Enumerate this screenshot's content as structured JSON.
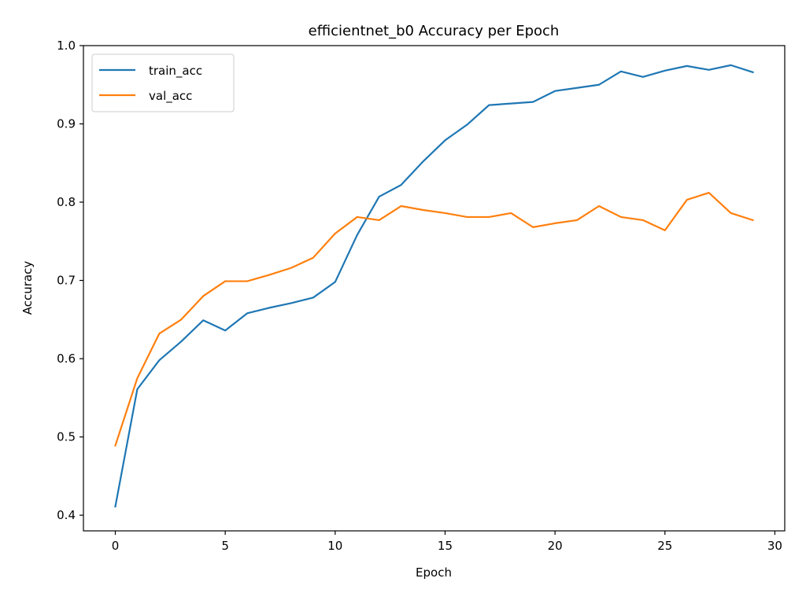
{
  "chart_data": {
    "type": "line",
    "title": "efficientnet_b0 Accuracy per Epoch",
    "xlabel": "Epoch",
    "ylabel": "Accuracy",
    "xlim": [
      -1.45,
      30.45
    ],
    "ylim": [
      0.38,
      1.0
    ],
    "xticks": [
      0,
      5,
      10,
      15,
      20,
      25,
      30
    ],
    "xtick_labels": [
      "0",
      "5",
      "10",
      "15",
      "20",
      "25",
      "30"
    ],
    "yticks": [
      0.4,
      0.5,
      0.6,
      0.7,
      0.8,
      0.9,
      1.0
    ],
    "ytick_labels": [
      "0.4",
      "0.5",
      "0.6",
      "0.7",
      "0.8",
      "0.9",
      "1.0"
    ],
    "grid": false,
    "legend_position": "top-left",
    "x": [
      0,
      1,
      2,
      3,
      4,
      5,
      6,
      7,
      8,
      9,
      10,
      11,
      12,
      13,
      14,
      15,
      16,
      17,
      18,
      19,
      20,
      21,
      22,
      23,
      24,
      25,
      26,
      27,
      28,
      29
    ],
    "series": [
      {
        "name": "train_acc",
        "color": "#1f77b4",
        "values": [
          0.411,
          0.561,
          0.598,
          0.622,
          0.649,
          0.636,
          0.658,
          0.665,
          0.671,
          0.678,
          0.698,
          0.758,
          0.807,
          0.822,
          0.852,
          0.879,
          0.899,
          0.924,
          0.926,
          0.928,
          0.942,
          0.946,
          0.95,
          0.967,
          0.96,
          0.968,
          0.974,
          0.969,
          0.975,
          0.966
        ]
      },
      {
        "name": "val_acc",
        "color": "#ff7f0e",
        "values": [
          0.489,
          0.575,
          0.632,
          0.65,
          0.68,
          0.699,
          0.699,
          0.707,
          0.716,
          0.729,
          0.76,
          0.781,
          0.777,
          0.795,
          0.79,
          0.786,
          0.781,
          0.781,
          0.786,
          0.768,
          0.773,
          0.777,
          0.795,
          0.781,
          0.777,
          0.764,
          0.803,
          0.812,
          0.786,
          0.777
        ]
      }
    ]
  }
}
